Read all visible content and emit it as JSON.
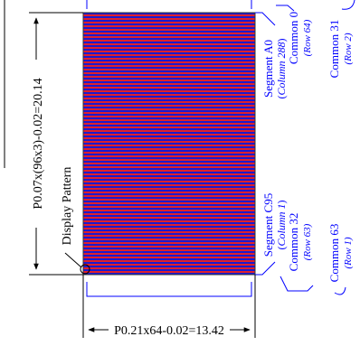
{
  "dimensions": {
    "vertical": "P0.07x(96x3)-0.02=20.14",
    "horizontal": "P0.21x64-0.02=13.42"
  },
  "labels": {
    "display_pattern": "Display Pattern",
    "segment_a0": "Segment A0",
    "column_288": "Column 288",
    "common_0": "Common 0",
    "row_64": "Row 64",
    "common_31": "Common 31",
    "row_2": "Row 2",
    "segment_c95": "Segment C95",
    "column_1": "Column 1",
    "common_32": "Common 32",
    "row_63": "Row 63",
    "common_63": "Common 63",
    "row_1": "Row 1"
  },
  "colors": {
    "line": "#0000ff",
    "stripe_red": "#e0202a",
    "stripe_blue": "#1a1ad0"
  }
}
